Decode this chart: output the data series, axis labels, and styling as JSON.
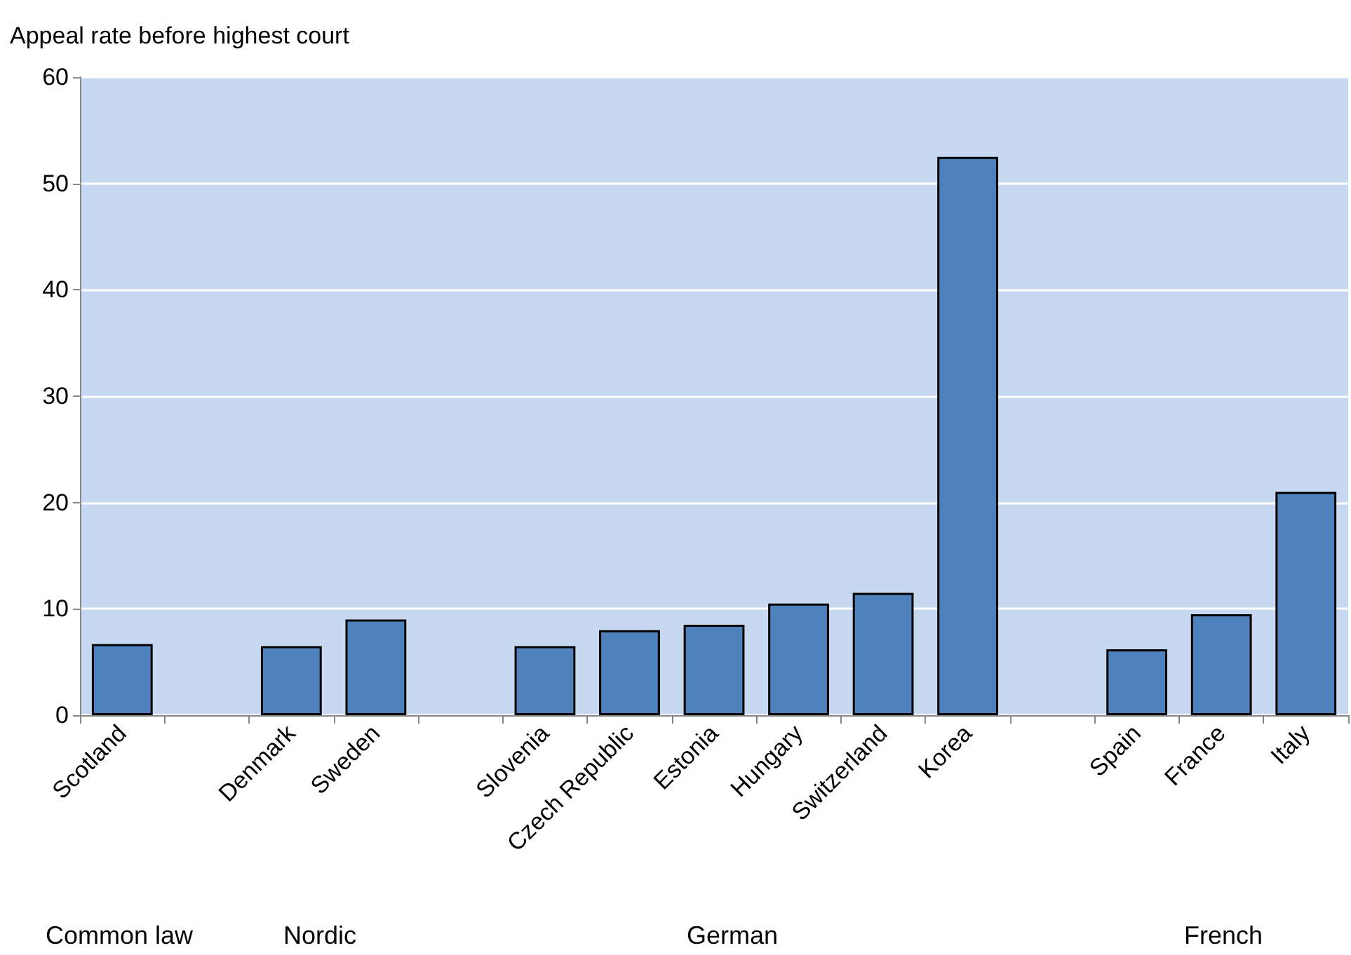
{
  "chart_data": {
    "type": "bar",
    "ylabel": "Appeal rate before highest court",
    "categories": [
      "Scotland",
      null,
      "Denmark",
      "Sweden",
      null,
      "Slovenia",
      "Czech Republic",
      "Estonia",
      "Hungary",
      "Switzerland",
      "Korea",
      null,
      "Spain",
      "France",
      "Italy"
    ],
    "values": [
      6.7,
      null,
      6.5,
      9,
      null,
      6.5,
      8,
      8.5,
      10.5,
      11.5,
      52.5,
      null,
      6.2,
      9.5,
      21
    ],
    "color": "#4f81bd",
    "ylim": [
      0,
      60
    ],
    "yticks": [
      0,
      10,
      20,
      30,
      40,
      50,
      60
    ],
    "grid": "y",
    "annotations": [
      "Common law",
      "Nordic",
      "German",
      "French"
    ]
  }
}
